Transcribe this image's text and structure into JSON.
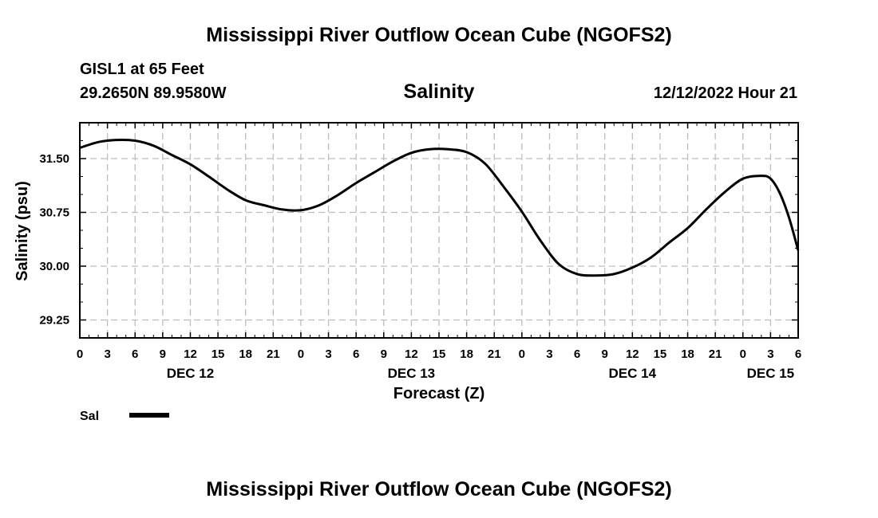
{
  "header": {
    "title": "Mississippi River Outflow Ocean Cube (NGOFS2)",
    "station": "GISL1 at 65 Feet",
    "coords": "29.2650N  89.9580W",
    "variable": "Salinity",
    "datetime": "12/12/2022 Hour 21"
  },
  "footer": {
    "title": "Mississippi River Outflow Ocean Cube (NGOFS2)"
  },
  "chart_data": {
    "type": "line",
    "title": "Salinity",
    "xlabel": "Forecast (Z)",
    "ylabel": "Salinity (psu)",
    "xlim": [
      0,
      78
    ],
    "ylim": [
      29.0,
      32.0
    ],
    "grid": true,
    "x_ticks": [
      0,
      3,
      6,
      9,
      12,
      15,
      18,
      21,
      24,
      27,
      30,
      33,
      36,
      39,
      42,
      45,
      48,
      51,
      54,
      57,
      60,
      63,
      66,
      69,
      72,
      75,
      78
    ],
    "x_tick_labels": [
      "0",
      "3",
      "6",
      "9",
      "12",
      "15",
      "18",
      "21",
      "0",
      "3",
      "6",
      "9",
      "12",
      "15",
      "18",
      "21",
      "0",
      "3",
      "6",
      "9",
      "12",
      "15",
      "18",
      "21",
      "0",
      "3",
      "6"
    ],
    "day_labels": [
      {
        "x": 12,
        "label": "DEC 12"
      },
      {
        "x": 36,
        "label": "DEC 13"
      },
      {
        "x": 60,
        "label": "DEC 14"
      },
      {
        "x": 75,
        "label": "DEC 15"
      }
    ],
    "y_ticks": [
      29.25,
      30.0,
      30.75,
      31.5
    ],
    "y_tick_labels": [
      "29.25",
      "30.00",
      "30.75",
      "31.50"
    ],
    "series": [
      {
        "name": "Sal",
        "x": [
          0,
          2,
          4,
          6,
          8,
          10,
          12,
          14,
          16,
          18,
          20,
          22,
          24,
          26,
          28,
          30,
          32,
          34,
          36,
          38,
          40,
          42,
          44,
          46,
          48,
          50,
          52,
          54,
          56,
          58,
          60,
          62,
          64,
          66,
          68,
          70,
          72,
          74,
          75,
          76,
          77,
          78
        ],
        "values": [
          31.65,
          31.73,
          31.76,
          31.75,
          31.68,
          31.55,
          31.42,
          31.25,
          31.07,
          30.92,
          30.85,
          30.79,
          30.78,
          30.85,
          30.99,
          31.16,
          31.31,
          31.46,
          31.58,
          31.63,
          31.63,
          31.59,
          31.43,
          31.11,
          30.76,
          30.36,
          30.03,
          29.89,
          29.87,
          29.89,
          29.98,
          30.12,
          30.33,
          30.53,
          30.79,
          31.03,
          31.22,
          31.26,
          31.22,
          31.02,
          30.68,
          30.22
        ]
      }
    ],
    "legend": [
      {
        "label": "Sal",
        "position": "bottom-left"
      }
    ]
  }
}
